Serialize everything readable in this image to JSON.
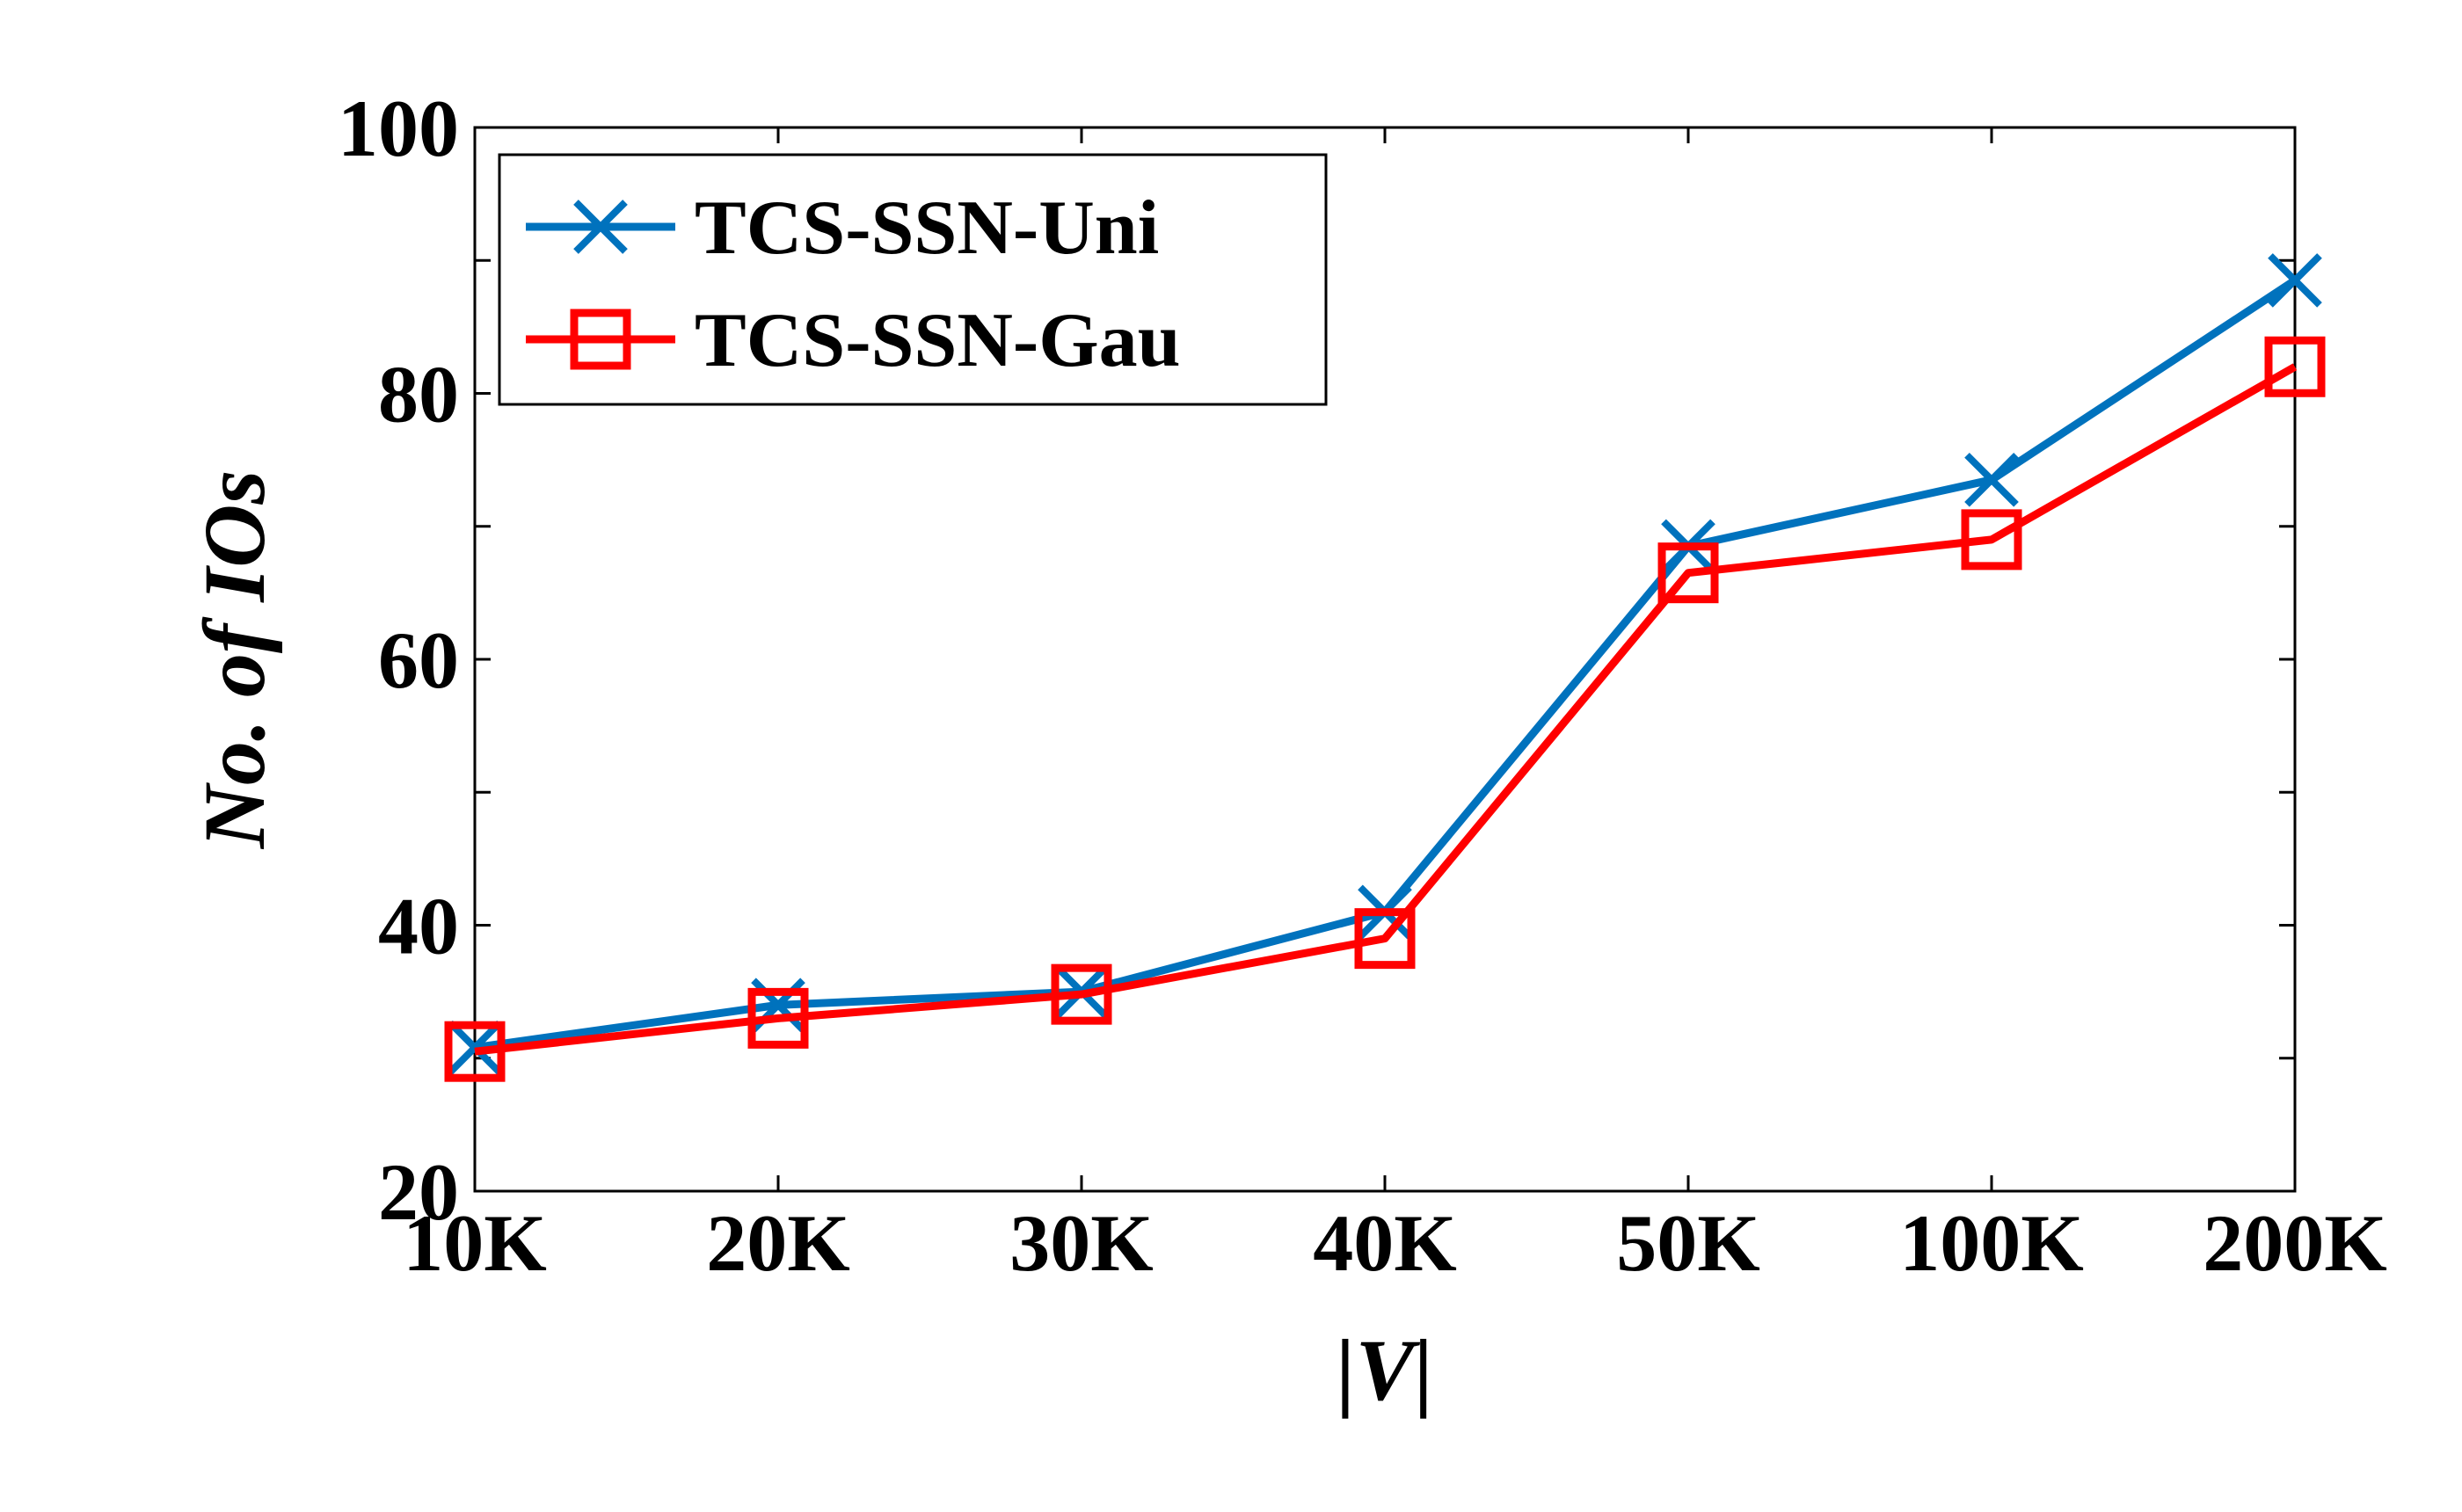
{
  "chart_data": {
    "type": "line",
    "categories": [
      "10K",
      "20K",
      "30K",
      "40K",
      "50K",
      "100K",
      "200K"
    ],
    "xlabel": "|V|",
    "ylabel": "No. of IOs",
    "ylim": [
      20,
      100
    ],
    "yticks": [
      20,
      40,
      60,
      80,
      100
    ],
    "grid": false,
    "legend_position": "top-left",
    "series": [
      {
        "name": "TCS-SSN-Uni",
        "color": "#0072BD",
        "marker": "x",
        "values": [
          30.8,
          34.0,
          35.0,
          41.0,
          68.5,
          73.5,
          88.5
        ]
      },
      {
        "name": "TCS-SSN-Gau",
        "color": "#FF0000",
        "marker": "square",
        "values": [
          30.5,
          33.0,
          34.8,
          39.0,
          66.5,
          69.0,
          82.0
        ]
      }
    ]
  }
}
